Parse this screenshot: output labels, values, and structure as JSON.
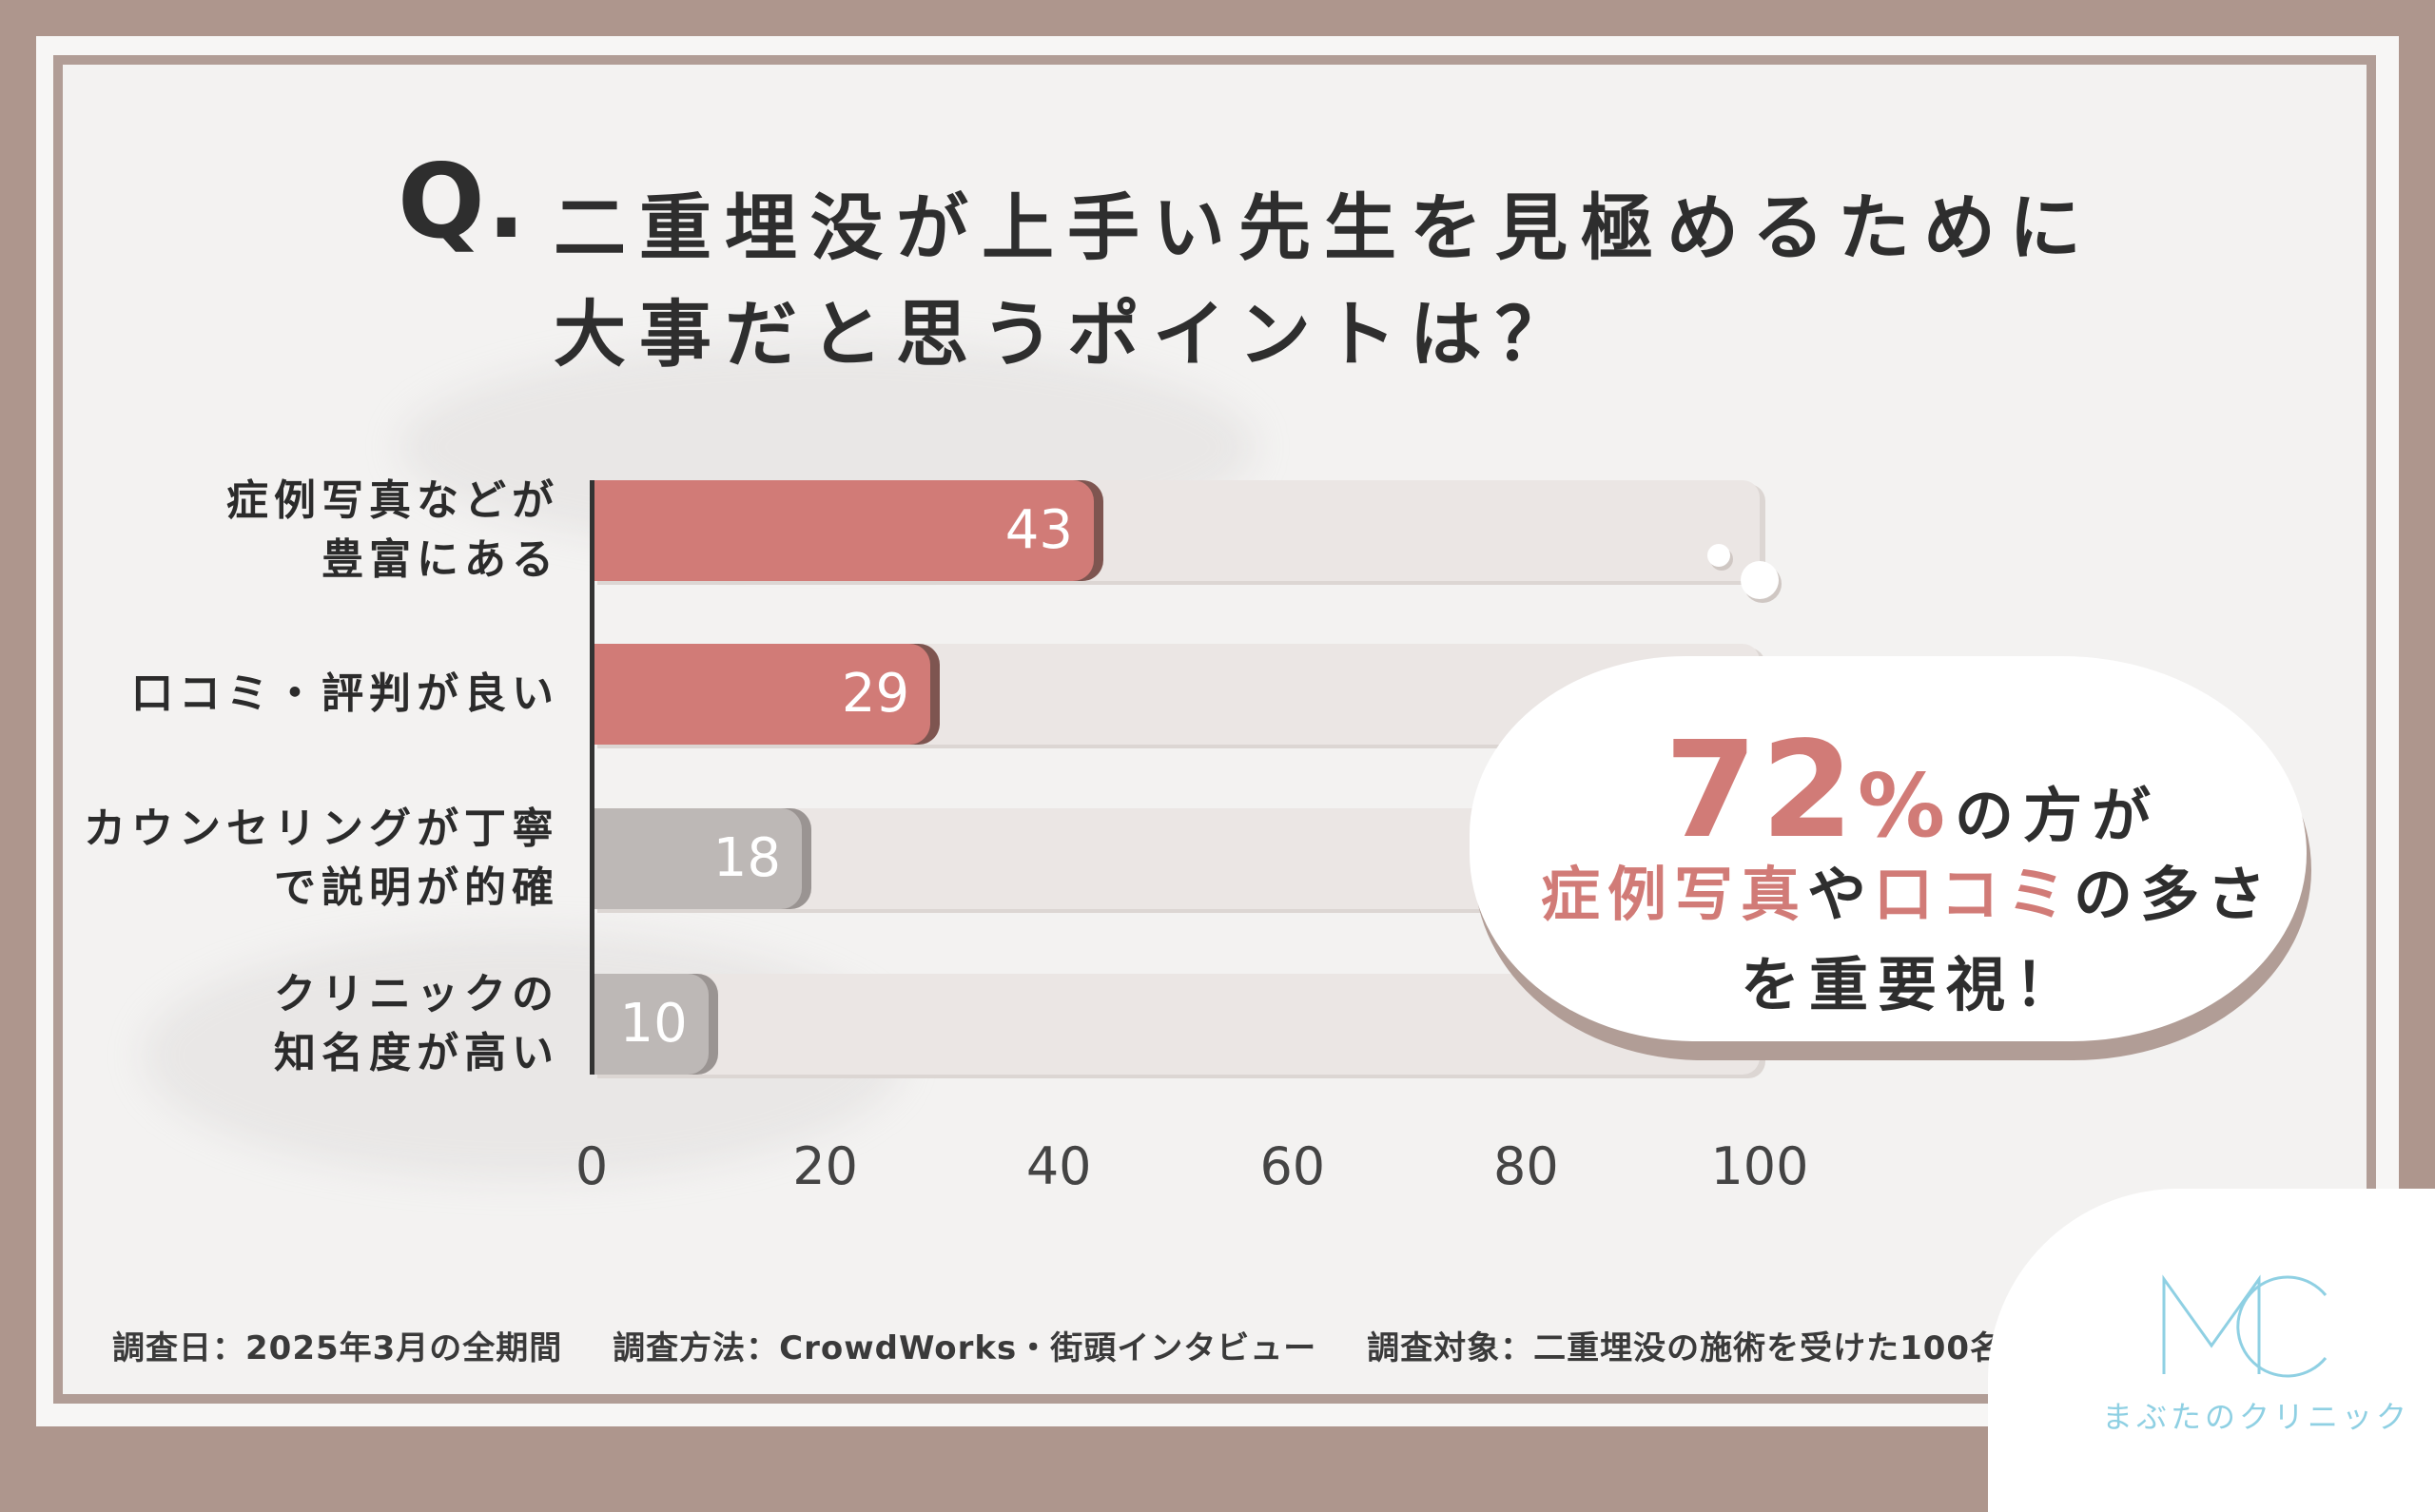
{
  "title": {
    "q": "Q.",
    "line1": "二重埋没が上手い先生を見極めるために",
    "line2": "大事だと思うポイントは？"
  },
  "chart_data": {
    "type": "bar",
    "orientation": "horizontal",
    "categories": [
      [
        "症例写真などが",
        "豊富にある"
      ],
      [
        "口コミ・評判が良い"
      ],
      [
        "カウンセリングが丁寧",
        "で説明が的確"
      ],
      [
        "クリニックの",
        "知名度が高い"
      ]
    ],
    "values": [
      43,
      29,
      18,
      10
    ],
    "xlim": [
      0,
      100
    ],
    "xticks": [
      "0",
      "20",
      "40",
      "60",
      "80",
      "100"
    ],
    "highlight_color": "#d17b77",
    "muted_color": "#bdb8b6",
    "track_color": "#ebe6e4"
  },
  "callout": {
    "big_number": "72",
    "percent": "%",
    "line1_rest": "の方が",
    "line2_part1": "症例写真",
    "line2_part2": "や",
    "line2_part3": "口コミ",
    "line2_part4": "の多さ",
    "line3": "を重要視！",
    "accent_color": "#d17b77"
  },
  "footer": {
    "date": "調査日：2025年3月の全期間",
    "method": "調査方法：CrowdWorks・街頭インタビュー",
    "target": "調査対象：二重埋没の施術を受けた100名"
  },
  "logo": {
    "mark_icon": "mc-logo-icon",
    "name": "まぶたのクリニック",
    "color": "#8fd0e3"
  }
}
